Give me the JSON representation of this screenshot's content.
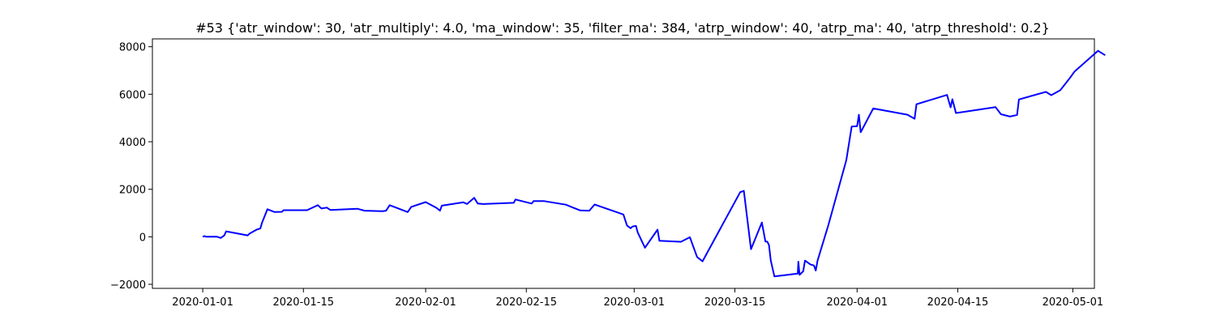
{
  "chart_data": {
    "type": "line",
    "title": "#53 {'atr_window': 30, 'atr_multiply': 4.0, 'ma_window': 35, 'filter_ma': 384, 'atrp_window': 40, 'atrp_ma': 40, 'atrp_threshold': 0.2}",
    "xlabel": "",
    "ylabel": "",
    "line_color": "#0000ff",
    "grid": false,
    "xlim": [
      "2019-12-25",
      "2020-05-04"
    ],
    "ylim": [
      -2170,
      8330
    ],
    "xticks": [
      "2020-01-01",
      "2020-01-15",
      "2020-02-01",
      "2020-02-15",
      "2020-03-01",
      "2020-03-15",
      "2020-04-01",
      "2020-04-15",
      "2020-05-01"
    ],
    "yticks": [
      -2000,
      0,
      2000,
      4000,
      6000,
      8000
    ],
    "ytick_labels": [
      "−2000",
      "0",
      "2000",
      "4000",
      "6000",
      "8000"
    ],
    "series": [
      {
        "points": [
          [
            "2020-01-01 00:00",
            0
          ],
          [
            "2020-01-01 06:00",
            30
          ],
          [
            "2020-01-01 12:00",
            0
          ],
          [
            "2020-01-02 00:00",
            0
          ],
          [
            "2020-01-02 12:00",
            10
          ],
          [
            "2020-01-03 00:00",
            0
          ],
          [
            "2020-01-03 12:00",
            -50
          ],
          [
            "2020-01-04 00:00",
            60
          ],
          [
            "2020-01-04 06:00",
            230
          ],
          [
            "2020-01-07 06:00",
            60
          ],
          [
            "2020-01-07 12:00",
            130
          ],
          [
            "2020-01-08 12:00",
            300
          ],
          [
            "2020-01-09 00:00",
            350
          ],
          [
            "2020-01-09 06:00",
            600
          ],
          [
            "2020-01-10 00:00",
            1160
          ],
          [
            "2020-01-11 00:00",
            1040
          ],
          [
            "2020-01-12 00:00",
            1050
          ],
          [
            "2020-01-12 06:00",
            1120
          ],
          [
            "2020-01-15 12:00",
            1120
          ],
          [
            "2020-01-17 00:00",
            1330
          ],
          [
            "2020-01-17 12:00",
            1190
          ],
          [
            "2020-01-18 06:00",
            1230
          ],
          [
            "2020-01-18 18:00",
            1130
          ],
          [
            "2020-01-22 12:00",
            1180
          ],
          [
            "2020-01-23 12:00",
            1100
          ],
          [
            "2020-01-26 00:00",
            1080
          ],
          [
            "2020-01-26 12:00",
            1100
          ],
          [
            "2020-01-27 00:00",
            1330
          ],
          [
            "2020-01-29 12:00",
            1040
          ],
          [
            "2020-01-30 00:00",
            1260
          ],
          [
            "2020-02-01 00:00",
            1460
          ],
          [
            "2020-02-02 12:00",
            1220
          ],
          [
            "2020-02-03 00:00",
            1100
          ],
          [
            "2020-02-03 06:00",
            1310
          ],
          [
            "2020-02-06 06:00",
            1450
          ],
          [
            "2020-02-06 18:00",
            1380
          ],
          [
            "2020-02-07 18:00",
            1640
          ],
          [
            "2020-02-08 06:00",
            1400
          ],
          [
            "2020-02-09 00:00",
            1380
          ],
          [
            "2020-02-13 06:00",
            1430
          ],
          [
            "2020-02-13 12:00",
            1570
          ],
          [
            "2020-02-15 18:00",
            1400
          ],
          [
            "2020-02-16 00:00",
            1500
          ],
          [
            "2020-02-17 12:00",
            1500
          ],
          [
            "2020-02-20 12:00",
            1350
          ],
          [
            "2020-02-21 12:00",
            1230
          ],
          [
            "2020-02-22 12:00",
            1110
          ],
          [
            "2020-02-23 18:00",
            1100
          ],
          [
            "2020-02-24 12:00",
            1360
          ],
          [
            "2020-02-28 12:00",
            940
          ],
          [
            "2020-02-29 00:00",
            480
          ],
          [
            "2020-02-29 12:00",
            360
          ],
          [
            "2020-02-29 18:00",
            430
          ],
          [
            "2020-03-01 06:00",
            460
          ],
          [
            "2020-03-01 12:00",
            180
          ],
          [
            "2020-03-02 12:00",
            -460
          ],
          [
            "2020-03-04 06:00",
            300
          ],
          [
            "2020-03-04 12:00",
            -170
          ],
          [
            "2020-03-07 12:00",
            -210
          ],
          [
            "2020-03-08 18:00",
            -20
          ],
          [
            "2020-03-09 18:00",
            -850
          ],
          [
            "2020-03-10 12:00",
            -1030
          ],
          [
            "2020-03-15 18:00",
            1880
          ],
          [
            "2020-03-16 06:00",
            1930
          ],
          [
            "2020-03-16 18:00",
            700
          ],
          [
            "2020-03-17 06:00",
            -520
          ],
          [
            "2020-03-18 18:00",
            600
          ],
          [
            "2020-03-19 06:00",
            -200
          ],
          [
            "2020-03-19 12:00",
            -200
          ],
          [
            "2020-03-19 18:00",
            -350
          ],
          [
            "2020-03-20 00:00",
            -1000
          ],
          [
            "2020-03-20 12:00",
            -1670
          ],
          [
            "2020-03-23 18:00",
            -1550
          ],
          [
            "2020-03-23 20:00",
            -1050
          ],
          [
            "2020-03-24 00:00",
            -1600
          ],
          [
            "2020-03-24 12:00",
            -1450
          ],
          [
            "2020-03-24 18:00",
            -1000
          ],
          [
            "2020-03-25 12:00",
            -1160
          ],
          [
            "2020-03-26 00:00",
            -1210
          ],
          [
            "2020-03-26 06:00",
            -1420
          ],
          [
            "2020-03-26 12:00",
            -1000
          ],
          [
            "2020-03-28 00:00",
            490
          ],
          [
            "2020-03-30 12:00",
            3230
          ],
          [
            "2020-03-31 06:00",
            4640
          ],
          [
            "2020-04-01 00:00",
            4660
          ],
          [
            "2020-04-01 06:00",
            5140
          ],
          [
            "2020-04-01 12:00",
            4400
          ],
          [
            "2020-04-03 06:00",
            5400
          ],
          [
            "2020-04-08 00:00",
            5140
          ],
          [
            "2020-04-09 00:00",
            4970
          ],
          [
            "2020-04-09 06:00",
            5580
          ],
          [
            "2020-04-13 12:00",
            5970
          ],
          [
            "2020-04-14 00:00",
            5450
          ],
          [
            "2020-04-14 06:00",
            5790
          ],
          [
            "2020-04-14 18:00",
            5210
          ],
          [
            "2020-04-15 18:00",
            5250
          ],
          [
            "2020-04-20 06:00",
            5460
          ],
          [
            "2020-04-21 00:00",
            5160
          ],
          [
            "2020-04-22 06:00",
            5060
          ],
          [
            "2020-04-23 06:00",
            5130
          ],
          [
            "2020-04-23 12:00",
            5780
          ],
          [
            "2020-04-27 06:00",
            6100
          ],
          [
            "2020-04-28 00:00",
            5960
          ],
          [
            "2020-04-29 06:00",
            6170
          ],
          [
            "2020-04-30 12:00",
            6650
          ],
          [
            "2020-05-01 06:00",
            6960
          ],
          [
            "2020-05-04 12:00",
            7830
          ],
          [
            "2020-05-05 12:00",
            7640
          ]
        ]
      }
    ]
  }
}
